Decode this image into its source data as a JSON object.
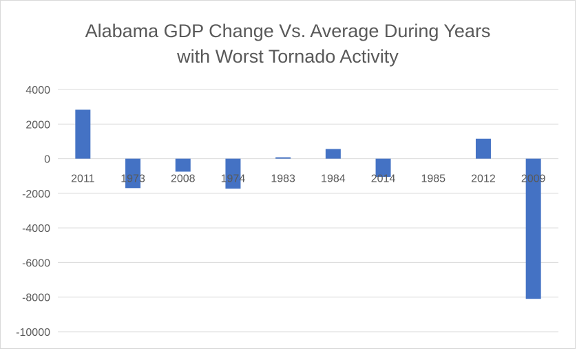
{
  "chart_data": {
    "type": "bar",
    "title": "Alabama GDP Change Vs. Average During Years with Worst Tornado Activity",
    "title_lines": [
      "Alabama GDP Change Vs. Average During Years",
      "with Worst Tornado Activity"
    ],
    "xlabel": "",
    "ylabel": "",
    "categories": [
      "2011",
      "1973",
      "2008",
      "1974",
      "1983",
      "1984",
      "2014",
      "1985",
      "2012",
      "2009"
    ],
    "values": [
      2830,
      -1700,
      -750,
      -1730,
      80,
      560,
      -1050,
      0,
      1150,
      -8100
    ],
    "ylim": [
      -10000,
      4000
    ],
    "yticks": [
      4000,
      2000,
      0,
      -2000,
      -4000,
      -6000,
      -8000,
      -10000
    ],
    "grid": true,
    "legend": "none",
    "bar_color": "#4472c4",
    "grid_color": "#d9d9d9",
    "text_color": "#595959"
  }
}
